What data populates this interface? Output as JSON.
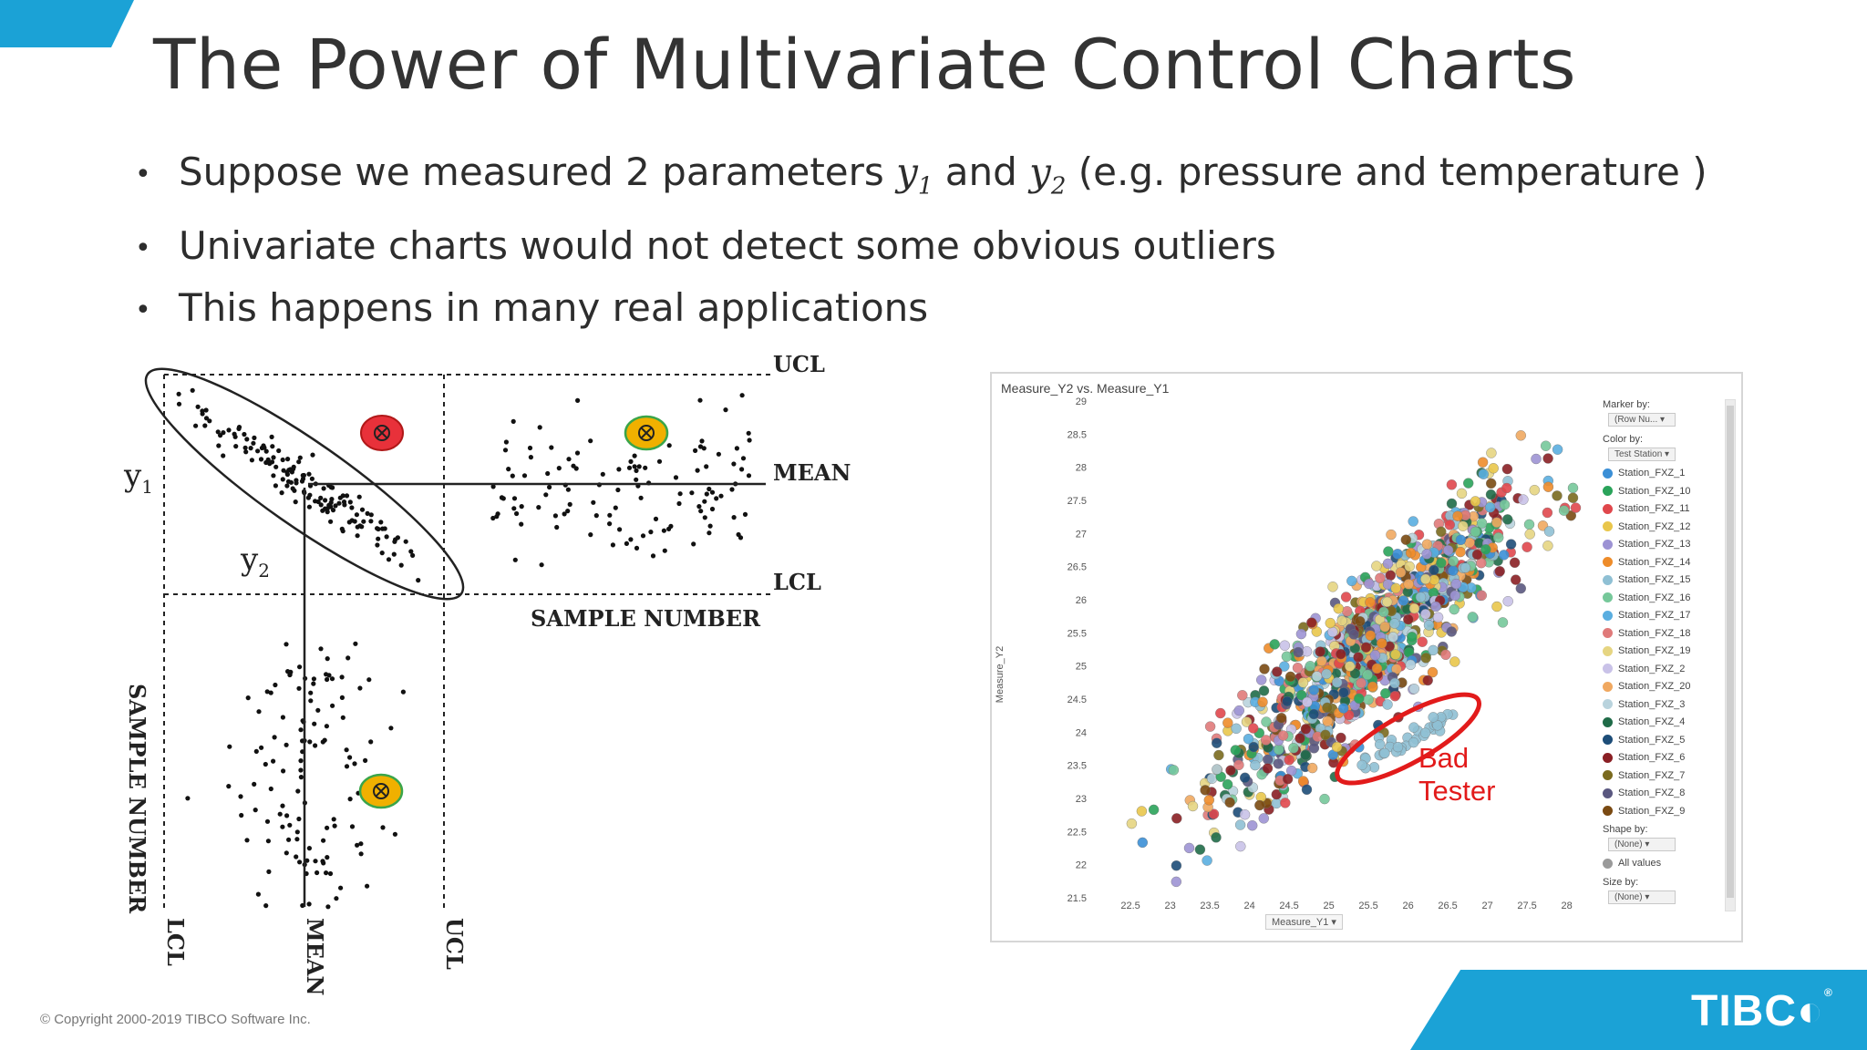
{
  "slide": {
    "title": "The Power of Multivariate Control Charts",
    "bullets": [
      {
        "pre": "Suppose we measured 2 parameters ",
        "v1": "y",
        "s1": "1",
        "mid": " and ",
        "v2": "y",
        "s2": "2",
        "post": " (e.g. pressure and temperature )"
      },
      {
        "text": "Univariate charts would not detect some obvious outliers"
      },
      {
        "text": "This happens in many real applications"
      }
    ],
    "bullet_glyph": "•",
    "copyright": "© Copyright 2000-2019 TIBCO Software Inc.",
    "logo": "TIBC",
    "logo_mark": "®"
  },
  "left_figure": {
    "labels": {
      "ucl": "UCL",
      "mean": "MEAN",
      "lcl": "LCL",
      "y1": "y",
      "y1_sub": "1",
      "y2": "y",
      "y2_sub": "2",
      "sample_number_h": "SAMPLE NUMBER",
      "sample_number_v": "SAMPLE NUMBER",
      "lcl_v": "LCL",
      "mean_v": "MEAN",
      "ucl_v": "UCL"
    },
    "markers": [
      {
        "kind": "outlier",
        "color": "#e8313a"
      },
      {
        "kind": "outlier",
        "color": "#f0b000"
      },
      {
        "kind": "outlier",
        "color": "#f0b000"
      }
    ]
  },
  "scatter_panel": {
    "title": "Measure_Y2 vs. Measure_Y1",
    "y_axis_label": "Measure_Y2",
    "x_axis_label": "Measure_Y1",
    "marker_by_label": "Marker by:",
    "marker_by_value": "(Row Nu...",
    "color_by_label": "Color by:",
    "color_by_value": "Test Station",
    "legend": [
      {
        "name": "Station_FXZ_1",
        "color": "#3b8fd6"
      },
      {
        "name": "Station_FXZ_10",
        "color": "#2aa35a"
      },
      {
        "name": "Station_FXZ_11",
        "color": "#e0474c"
      },
      {
        "name": "Station_FXZ_12",
        "color": "#e9c64b"
      },
      {
        "name": "Station_FXZ_13",
        "color": "#9d93d4"
      },
      {
        "name": "Station_FXZ_14",
        "color": "#ee8c2a"
      },
      {
        "name": "Station_FXZ_15",
        "color": "#8fc0d4"
      },
      {
        "name": "Station_FXZ_16",
        "color": "#76c89a"
      },
      {
        "name": "Station_FXZ_17",
        "color": "#5aaee0"
      },
      {
        "name": "Station_FXZ_18",
        "color": "#e07a7a"
      },
      {
        "name": "Station_FXZ_19",
        "color": "#e6d582"
      },
      {
        "name": "Station_FXZ_2",
        "color": "#c9c2e8"
      },
      {
        "name": "Station_FXZ_20",
        "color": "#f0a860"
      },
      {
        "name": "Station_FXZ_3",
        "color": "#b9d3dd"
      },
      {
        "name": "Station_FXZ_4",
        "color": "#1f6b48"
      },
      {
        "name": "Station_FXZ_5",
        "color": "#1d4d78"
      },
      {
        "name": "Station_FXZ_6",
        "color": "#8a1f24"
      },
      {
        "name": "Station_FXZ_7",
        "color": "#7a6a1e"
      },
      {
        "name": "Station_FXZ_8",
        "color": "#5a5880"
      },
      {
        "name": "Station_FXZ_9",
        "color": "#7a4a12"
      }
    ],
    "shape_by_label": "Shape by:",
    "shape_by_value": "(None)",
    "all_values": "All values",
    "size_by_label": "Size by:",
    "size_by_value": "(None)",
    "annotation_line1": "Bad",
    "annotation_line2": "Tester",
    "annotation_color": "#e21b1b"
  },
  "chart_data": {
    "type": "scatter",
    "title": "Measure_Y2 vs. Measure_Y1",
    "xlabel": "Measure_Y1",
    "ylabel": "Measure_Y2",
    "xlim": [
      22.2,
      28.2
    ],
    "ylim": [
      21.5,
      29
    ],
    "x_ticks": [
      "22.5",
      "23",
      "23.5",
      "24",
      "24.5",
      "25",
      "25.5",
      "26",
      "26.5",
      "27",
      "27.5",
      "28"
    ],
    "y_ticks": [
      "21.5",
      "22",
      "22.5",
      "23",
      "23.5",
      "24",
      "24.5",
      "25",
      "25.5",
      "26",
      "26.5",
      "27",
      "27.5",
      "28",
      "28.5",
      "29"
    ],
    "trend": {
      "slope": 1.1,
      "intercept": -2.8
    },
    "bad_tester_cluster": {
      "x_range": [
        25.4,
        26.6
      ],
      "y_range": [
        23.5,
        24.3
      ]
    }
  }
}
